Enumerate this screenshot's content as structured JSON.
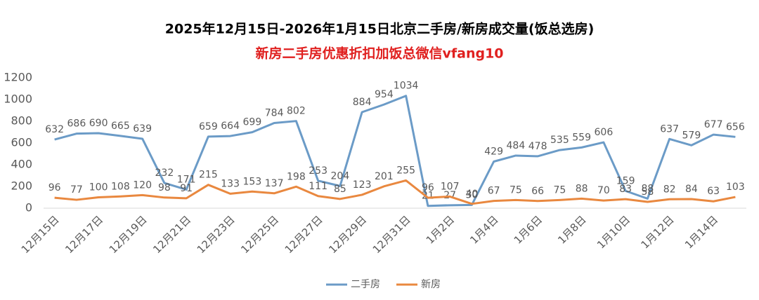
{
  "chart_data": {
    "type": "line",
    "title": "2025年12月15日-2026年1月15日北京二手房/新房成交量(饭总选房)",
    "subtitle": "新房二手房优惠折扣加饭总微信vfang10",
    "categories": [
      "12月15日",
      null,
      "12月17日",
      null,
      "12月19日",
      null,
      "12月21日",
      null,
      "12月23日",
      null,
      "12月25日",
      null,
      "12月27日",
      null,
      "12月29日",
      null,
      "12月31日",
      null,
      "1月2日",
      null,
      "1月4日",
      null,
      "1月6日",
      null,
      "1月8日",
      null,
      "1月10日",
      null,
      "1月12日",
      null,
      "1月14日",
      null
    ],
    "series": [
      {
        "name": "二手房",
        "color": "#6b9bc7",
        "values": [
          632,
          686,
          690,
          665,
          639,
          232,
          171,
          659,
          664,
          699,
          784,
          802,
          253,
          204,
          884,
          954,
          1034,
          21,
          27,
          30,
          429,
          484,
          478,
          535,
          559,
          606,
          159,
          88,
          637,
          579,
          677,
          656
        ]
      },
      {
        "name": "新房",
        "color": "#e9883f",
        "values": [
          96,
          77,
          100,
          108,
          120,
          98,
          91,
          215,
          133,
          153,
          137,
          198,
          111,
          85,
          123,
          201,
          255,
          96,
          107,
          40,
          67,
          75,
          66,
          75,
          88,
          70,
          83,
          58,
          82,
          84,
          63,
          103
        ]
      }
    ],
    "ylim": [
      0,
      1200
    ],
    "yticks": [
      0,
      200,
      400,
      600,
      800,
      1000,
      1200
    ],
    "grid": false,
    "legend": "bottom"
  }
}
